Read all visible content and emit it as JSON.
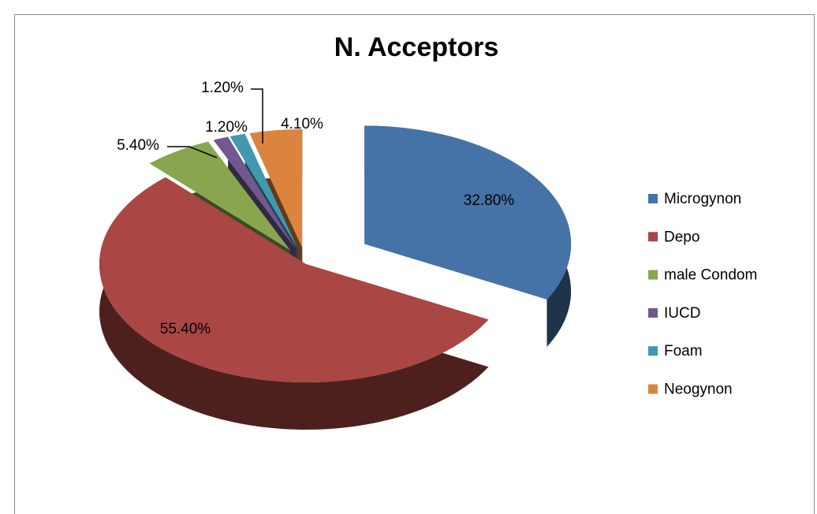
{
  "chart_data": {
    "type": "pie",
    "title": "N. Acceptors",
    "categories": [
      "Microgynon",
      "Depo",
      "male Condom",
      "IUCD",
      "Foam",
      "Neogynon"
    ],
    "values": [
      32.8,
      55.4,
      5.4,
      1.2,
      1.2,
      4.1
    ],
    "value_labels": [
      "32.80%",
      "55.40%",
      "5.40%",
      "1.20%",
      "1.20%",
      "4.10%"
    ],
    "colors": [
      "#4572a7",
      "#aa4643",
      "#89a54e",
      "#71588f",
      "#4198af",
      "#db843d"
    ],
    "legend": "right"
  }
}
